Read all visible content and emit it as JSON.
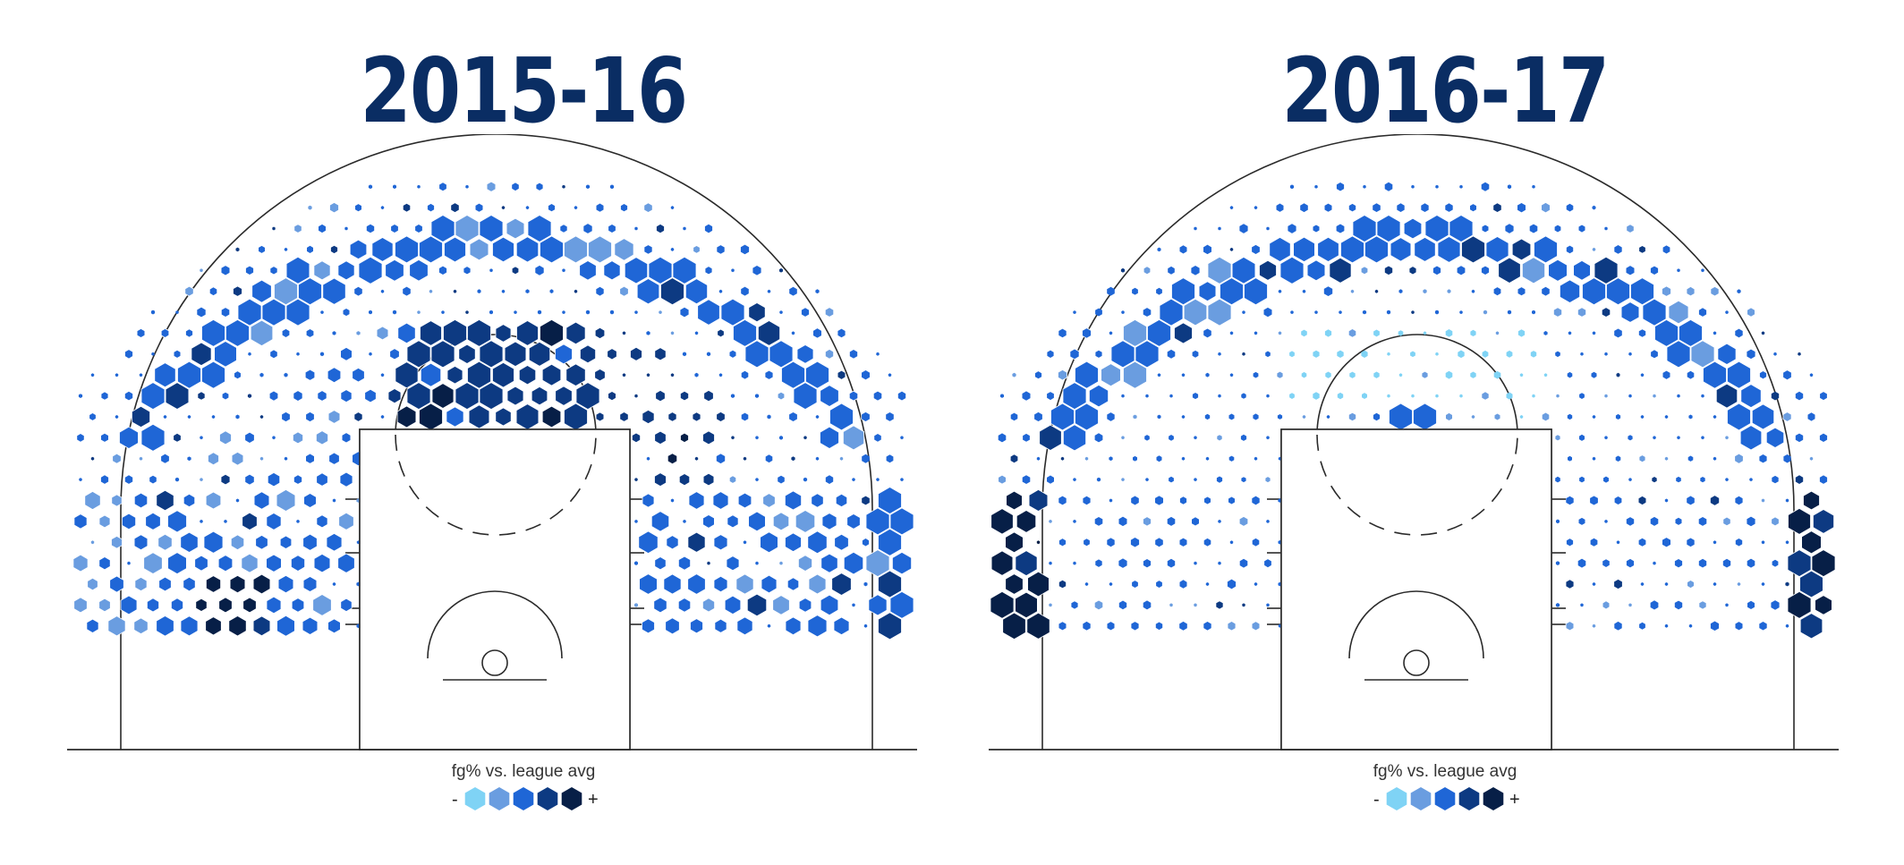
{
  "colors": {
    "line": "#2a2a2a",
    "scale": [
      "#7fd3f5",
      "#6a9de0",
      "#1f66d6",
      "#0d3a82",
      "#071f47"
    ],
    "title": "#0a2d63"
  },
  "legend": {
    "label": "fg% vs. league avg",
    "minus": "-",
    "plus": "+"
  },
  "chart_data": [
    {
      "type": "heatmap",
      "title": "2015-16",
      "legend_label": "fg% vs. league avg",
      "scale_levels": 5,
      "zones": [
        {
          "zone": "above-break 3 (deep arc)",
          "volume": "high",
          "fg_level": 3
        },
        {
          "zone": "left wing 3",
          "volume": "high",
          "fg_level": 3
        },
        {
          "zone": "right wing 3",
          "volume": "high",
          "fg_level": 3
        },
        {
          "zone": "top-of-key mid-range",
          "volume": "high",
          "fg_level": 4
        },
        {
          "zone": "right elbow mid-range",
          "volume": "medium",
          "fg_level": 4
        },
        {
          "zone": "left baseline mid-range",
          "volume": "high",
          "fg_level": 5
        },
        {
          "zone": "right baseline mid-range",
          "volume": "high",
          "fg_level": 3
        },
        {
          "zone": "left corner 3",
          "volume": "medium",
          "fg_level": 2
        },
        {
          "zone": "right corner 3",
          "volume": "high",
          "fg_level": 3
        }
      ]
    },
    {
      "type": "heatmap",
      "title": "2016-17",
      "legend_label": "fg% vs. league avg",
      "scale_levels": 5,
      "zones": [
        {
          "zone": "above-break 3 (deep arc)",
          "volume": "high",
          "fg_level": 3
        },
        {
          "zone": "left wing 3",
          "volume": "medium",
          "fg_level": 3
        },
        {
          "zone": "right wing 3",
          "volume": "high",
          "fg_level": 3
        },
        {
          "zone": "top-of-key mid-range",
          "volume": "medium",
          "fg_level": 1
        },
        {
          "zone": "free-throw line",
          "volume": "medium",
          "fg_level": 3
        },
        {
          "zone": "left baseline mid-range",
          "volume": "medium",
          "fg_level": 3
        },
        {
          "zone": "right baseline mid-range",
          "volume": "medium",
          "fg_level": 3
        },
        {
          "zone": "left corner 3",
          "volume": "high",
          "fg_level": 5
        },
        {
          "zone": "right corner 3",
          "volume": "high",
          "fg_level": 5
        }
      ]
    }
  ]
}
